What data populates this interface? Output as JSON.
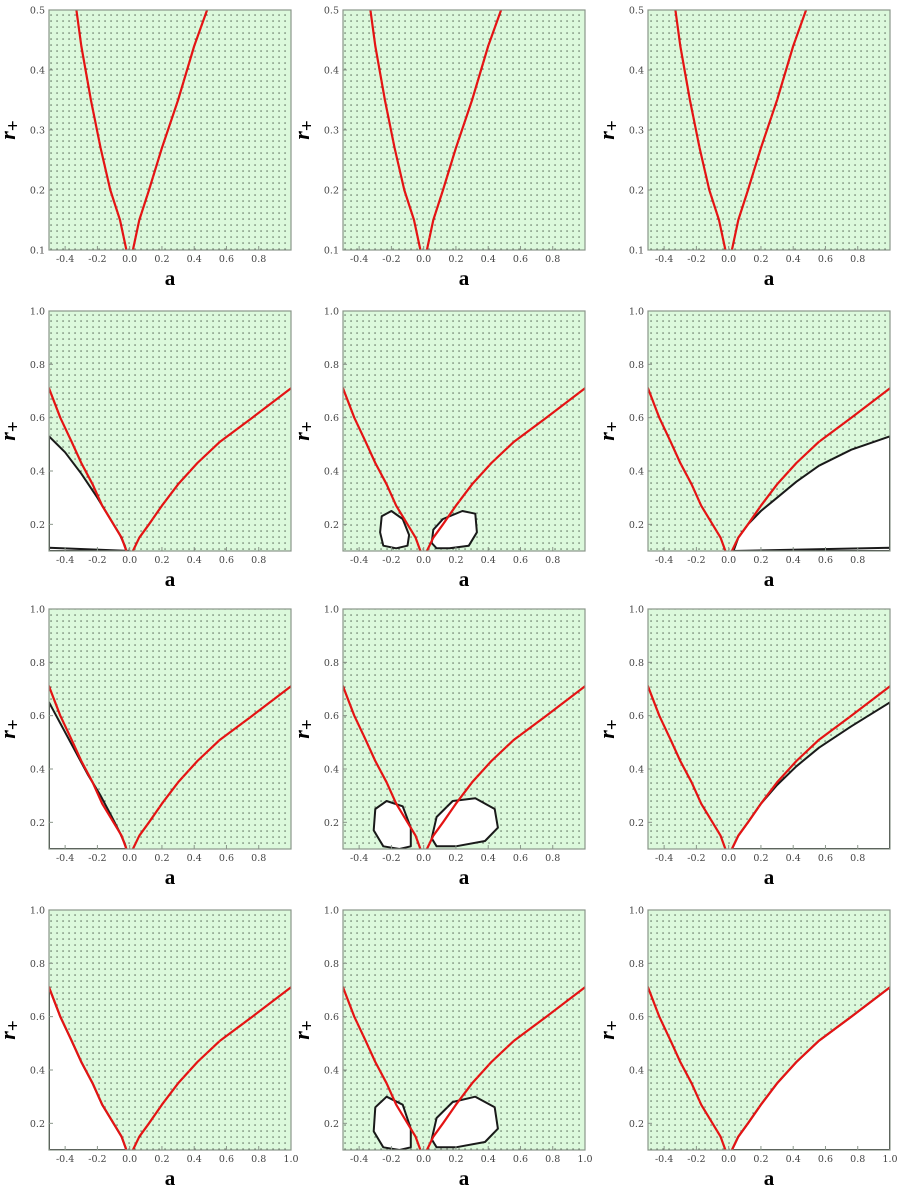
{
  "colors": {
    "region_fill": "#dcf9dc",
    "dot": "#1e281e",
    "red_curve": "#e41414",
    "black_curve": "#1a1a1a",
    "excluded": "#ffffff"
  },
  "chart_data": [
    {
      "type": "scatter",
      "id": "r1c1",
      "xlabel": "a",
      "ylabel": "r",
      "ylabel_sub": "+",
      "xlim": [
        -0.5,
        1.0
      ],
      "ylim": [
        0.1,
        0.5
      ],
      "xticks": [
        "-0.4",
        "-0.2",
        "0.0",
        "0.2",
        "0.4",
        "0.6",
        "0.8"
      ],
      "yticks": [
        "0.1",
        "0.2",
        "0.3",
        "0.4",
        "0.5"
      ],
      "red_curve": {
        "left_a": [
          -0.02,
          -0.06,
          -0.12,
          -0.18,
          -0.24,
          -0.3,
          -0.33
        ],
        "right_a": [
          0.02,
          0.06,
          0.12,
          0.2,
          0.3,
          0.4,
          0.48
        ],
        "r": [
          0.1,
          0.15,
          0.2,
          0.27,
          0.35,
          0.44,
          0.5
        ]
      },
      "excluded_regions": []
    },
    {
      "type": "scatter",
      "id": "r1c2",
      "xlabel": "a",
      "ylabel": "r",
      "ylabel_sub": "+",
      "xlim": [
        -0.5,
        1.0
      ],
      "ylim": [
        0.1,
        0.5
      ],
      "xticks": [
        "-0.4",
        "-0.2",
        "0.0",
        "0.2",
        "0.4",
        "0.6",
        "0.8"
      ],
      "yticks": [
        "0.1",
        "0.2",
        "0.3",
        "0.4",
        "0.5"
      ],
      "red_curve": {
        "left_a": [
          -0.02,
          -0.06,
          -0.12,
          -0.18,
          -0.24,
          -0.3,
          -0.33
        ],
        "right_a": [
          0.02,
          0.06,
          0.12,
          0.2,
          0.3,
          0.4,
          0.48
        ],
        "r": [
          0.1,
          0.15,
          0.2,
          0.27,
          0.35,
          0.44,
          0.5
        ]
      },
      "excluded_regions": []
    },
    {
      "type": "scatter",
      "id": "r1c3",
      "xlabel": "a",
      "ylabel": "r",
      "ylabel_sub": "+",
      "xlim": [
        -0.5,
        1.0
      ],
      "ylim": [
        0.1,
        0.5
      ],
      "xticks": [
        "-0.4",
        "-0.2",
        "0.0",
        "0.2",
        "0.4",
        "0.6",
        "0.8"
      ],
      "yticks": [
        "0.1",
        "0.2",
        "0.3",
        "0.4",
        "0.5"
      ],
      "red_curve": {
        "left_a": [
          -0.02,
          -0.06,
          -0.12,
          -0.18,
          -0.24,
          -0.3,
          -0.33
        ],
        "right_a": [
          0.02,
          0.06,
          0.12,
          0.2,
          0.3,
          0.4,
          0.48
        ],
        "r": [
          0.1,
          0.15,
          0.2,
          0.27,
          0.35,
          0.44,
          0.5
        ]
      },
      "excluded_regions": []
    },
    {
      "type": "scatter",
      "id": "r2c1",
      "xlabel": "a",
      "ylabel": "r",
      "ylabel_sub": "+",
      "xlim": [
        -0.5,
        1.0
      ],
      "ylim": [
        0.1,
        1.0
      ],
      "xticks": [
        "-0.4",
        "-0.2",
        "0.0",
        "0.2",
        "0.4",
        "0.6",
        "0.8"
      ],
      "yticks": [
        "0.2",
        "0.4",
        "0.6",
        "0.8",
        "1.0"
      ],
      "red_curve": {
        "left_a": [
          -0.02,
          -0.05,
          -0.1,
          -0.17,
          -0.23,
          -0.3,
          -0.36,
          -0.43,
          -0.5
        ],
        "right_a": [
          0.02,
          0.06,
          0.12,
          0.2,
          0.3,
          0.42,
          0.56,
          0.76,
          1.0
        ],
        "r": [
          0.1,
          0.15,
          0.2,
          0.27,
          0.35,
          0.43,
          0.51,
          0.6,
          0.71
        ]
      },
      "excluded_regions": [
        {
          "a": [
            -0.5,
            -0.4,
            -0.3,
            -0.2,
            -0.12,
            -0.06,
            -0.03,
            -0.02,
            -0.5
          ],
          "r": [
            0.53,
            0.47,
            0.39,
            0.3,
            0.22,
            0.16,
            0.12,
            0.1,
            0.1
          ]
        },
        {
          "a": [
            -0.5,
            0.0,
            -0.5
          ],
          "r": [
            0.112,
            0.1,
            0.1
          ]
        }
      ]
    },
    {
      "type": "scatter",
      "id": "r2c2",
      "xlabel": "a",
      "ylabel": "r",
      "ylabel_sub": "+",
      "xlim": [
        -0.5,
        1.0
      ],
      "ylim": [
        0.1,
        1.0
      ],
      "xticks": [
        "-0.4",
        "-0.2",
        "0.0",
        "0.2",
        "0.4",
        "0.6",
        "0.8"
      ],
      "yticks": [
        "0.2",
        "0.4",
        "0.6",
        "0.8",
        "1.0"
      ],
      "red_curve": {
        "left_a": [
          -0.02,
          -0.05,
          -0.1,
          -0.17,
          -0.23,
          -0.3,
          -0.36,
          -0.43,
          -0.5
        ],
        "right_a": [
          0.02,
          0.06,
          0.12,
          0.2,
          0.3,
          0.42,
          0.56,
          0.76,
          1.0
        ],
        "r": [
          0.1,
          0.15,
          0.2,
          0.27,
          0.35,
          0.43,
          0.51,
          0.6,
          0.71
        ]
      },
      "excluded_regions": [
        {
          "a": [
            -0.26,
            -0.2,
            -0.13,
            -0.09,
            -0.1,
            -0.17,
            -0.25,
            -0.27,
            -0.26
          ],
          "r": [
            0.23,
            0.25,
            0.22,
            0.16,
            0.12,
            0.11,
            0.12,
            0.17,
            0.23
          ]
        },
        {
          "a": [
            0.06,
            0.12,
            0.24,
            0.32,
            0.33,
            0.28,
            0.16,
            0.08,
            0.05,
            0.06
          ],
          "r": [
            0.18,
            0.22,
            0.25,
            0.24,
            0.17,
            0.12,
            0.11,
            0.11,
            0.13,
            0.18
          ]
        }
      ]
    },
    {
      "type": "scatter",
      "id": "r2c3",
      "xlabel": "a",
      "ylabel": "r",
      "ylabel_sub": "+",
      "xlim": [
        -0.5,
        1.0
      ],
      "ylim": [
        0.1,
        1.0
      ],
      "xticks": [
        "-0.4",
        "-0.2",
        "0.0",
        "0.2",
        "0.4",
        "0.6",
        "0.8"
      ],
      "yticks": [
        "0.2",
        "0.4",
        "0.6",
        "0.8",
        "1.0"
      ],
      "red_curve": {
        "left_a": [
          -0.02,
          -0.05,
          -0.1,
          -0.17,
          -0.23,
          -0.3,
          -0.36,
          -0.43,
          -0.5
        ],
        "right_a": [
          0.02,
          0.06,
          0.12,
          0.2,
          0.3,
          0.42,
          0.56,
          0.76,
          1.0
        ],
        "r": [
          0.1,
          0.15,
          0.2,
          0.27,
          0.35,
          0.43,
          0.51,
          0.6,
          0.71
        ]
      },
      "excluded_regions": [
        {
          "a": [
            0.03,
            0.06,
            0.12,
            0.2,
            0.3,
            0.42,
            0.56,
            0.76,
            1.0,
            1.0,
            0.02
          ],
          "r": [
            0.1,
            0.15,
            0.2,
            0.25,
            0.3,
            0.36,
            0.42,
            0.48,
            0.53,
            0.1,
            0.1
          ]
        },
        {
          "a": [
            0.02,
            1.0,
            1.0
          ],
          "r": [
            0.1,
            0.112,
            0.1
          ]
        }
      ]
    },
    {
      "type": "scatter",
      "id": "r3c1",
      "xlabel": "a",
      "ylabel": "r",
      "ylabel_sub": "+",
      "xlim": [
        -0.5,
        1.0
      ],
      "ylim": [
        0.1,
        1.0
      ],
      "xticks": [
        "-0.4",
        "-0.2",
        "0.0",
        "0.2",
        "0.4",
        "0.6",
        "0.8"
      ],
      "yticks": [
        "0.2",
        "0.4",
        "0.6",
        "0.8",
        "1.0"
      ],
      "red_curve": {
        "left_a": [
          -0.02,
          -0.05,
          -0.1,
          -0.17,
          -0.23,
          -0.3,
          -0.36,
          -0.43,
          -0.5
        ],
        "right_a": [
          0.02,
          0.06,
          0.12,
          0.2,
          0.3,
          0.42,
          0.56,
          0.76,
          1.0
        ],
        "r": [
          0.1,
          0.15,
          0.2,
          0.27,
          0.35,
          0.43,
          0.51,
          0.6,
          0.71
        ]
      },
      "excluded_regions": [
        {
          "a": [
            -0.5,
            -0.42,
            -0.34,
            -0.26,
            -0.18,
            -0.11,
            -0.06,
            -0.03,
            -0.02,
            -0.5
          ],
          "r": [
            0.65,
            0.56,
            0.47,
            0.38,
            0.3,
            0.22,
            0.16,
            0.12,
            0.1,
            0.1
          ]
        }
      ]
    },
    {
      "type": "scatter",
      "id": "r3c2",
      "xlabel": "a",
      "ylabel": "r",
      "ylabel_sub": "+",
      "xlim": [
        -0.5,
        1.0
      ],
      "ylim": [
        0.1,
        1.0
      ],
      "xticks": [
        "-0.4",
        "-0.2",
        "0.0",
        "0.2",
        "0.4",
        "0.6",
        "0.8"
      ],
      "yticks": [
        "0.2",
        "0.4",
        "0.6",
        "0.8",
        "1.0"
      ],
      "red_curve": {
        "left_a": [
          -0.02,
          -0.05,
          -0.1,
          -0.17,
          -0.23,
          -0.3,
          -0.36,
          -0.43,
          -0.5
        ],
        "right_a": [
          0.02,
          0.06,
          0.12,
          0.2,
          0.3,
          0.42,
          0.56,
          0.76,
          1.0
        ],
        "r": [
          0.1,
          0.15,
          0.2,
          0.27,
          0.35,
          0.43,
          0.51,
          0.6,
          0.71
        ]
      },
      "excluded_regions": [
        {
          "a": [
            -0.3,
            -0.23,
            -0.13,
            -0.08,
            -0.08,
            -0.15,
            -0.25,
            -0.31,
            -0.3
          ],
          "r": [
            0.25,
            0.28,
            0.26,
            0.18,
            0.11,
            0.1,
            0.11,
            0.17,
            0.25
          ]
        },
        {
          "a": [
            0.08,
            0.18,
            0.32,
            0.44,
            0.46,
            0.38,
            0.2,
            0.08,
            0.05,
            0.08
          ],
          "r": [
            0.22,
            0.28,
            0.29,
            0.25,
            0.18,
            0.13,
            0.11,
            0.11,
            0.14,
            0.22
          ]
        }
      ]
    },
    {
      "type": "scatter",
      "id": "r3c3",
      "xlabel": "a",
      "ylabel": "r",
      "ylabel_sub": "+",
      "xlim": [
        -0.5,
        1.0
      ],
      "ylim": [
        0.1,
        1.0
      ],
      "xticks": [
        "-0.4",
        "-0.2",
        "0.0",
        "0.2",
        "0.4",
        "0.6",
        "0.8"
      ],
      "yticks": [
        "0.2",
        "0.4",
        "0.6",
        "0.8",
        "1.0"
      ],
      "red_curve": {
        "left_a": [
          -0.02,
          -0.05,
          -0.1,
          -0.17,
          -0.23,
          -0.3,
          -0.36,
          -0.43,
          -0.5
        ],
        "right_a": [
          0.02,
          0.06,
          0.12,
          0.2,
          0.3,
          0.42,
          0.56,
          0.76,
          1.0
        ],
        "r": [
          0.1,
          0.15,
          0.2,
          0.27,
          0.35,
          0.43,
          0.51,
          0.6,
          0.71
        ]
      },
      "excluded_regions": [
        {
          "a": [
            0.02,
            0.06,
            0.12,
            0.2,
            0.3,
            0.42,
            0.56,
            0.76,
            1.0,
            1.0,
            0.02
          ],
          "r": [
            0.1,
            0.15,
            0.2,
            0.27,
            0.34,
            0.41,
            0.48,
            0.56,
            0.65,
            0.1,
            0.1
          ]
        }
      ]
    },
    {
      "type": "scatter",
      "id": "r4c1",
      "xlabel": "a",
      "ylabel": "r",
      "ylabel_sub": "+",
      "xlim": [
        -0.5,
        1.0
      ],
      "ylim": [
        0.1,
        1.0
      ],
      "xticks": [
        "-0.4",
        "-0.2",
        "0.0",
        "0.2",
        "0.4",
        "0.6",
        "0.8",
        "1.0"
      ],
      "yticks": [
        "0.2",
        "0.4",
        "0.6",
        "0.8",
        "1.0"
      ],
      "red_curve": {
        "left_a": [
          -0.02,
          -0.05,
          -0.1,
          -0.17,
          -0.23,
          -0.3,
          -0.36,
          -0.43,
          -0.5
        ],
        "right_a": [
          0.02,
          0.06,
          0.12,
          0.2,
          0.3,
          0.42,
          0.56,
          0.76,
          1.0
        ],
        "r": [
          0.1,
          0.15,
          0.2,
          0.27,
          0.35,
          0.43,
          0.51,
          0.6,
          0.71
        ]
      },
      "excluded_regions": [
        {
          "a": [
            -0.5,
            -0.43,
            -0.36,
            -0.3,
            -0.23,
            -0.17,
            -0.1,
            -0.05,
            -0.02,
            -0.5
          ],
          "r": [
            0.71,
            0.6,
            0.51,
            0.43,
            0.35,
            0.27,
            0.2,
            0.15,
            0.1,
            0.1
          ]
        }
      ]
    },
    {
      "type": "scatter",
      "id": "r4c2",
      "xlabel": "a",
      "ylabel": "r",
      "ylabel_sub": "+",
      "xlim": [
        -0.5,
        1.0
      ],
      "ylim": [
        0.1,
        1.0
      ],
      "xticks": [
        "-0.4",
        "-0.2",
        "0.0",
        "0.2",
        "0.4",
        "0.6",
        "0.8",
        "1.0"
      ],
      "yticks": [
        "0.2",
        "0.4",
        "0.6",
        "0.8",
        "1.0"
      ],
      "red_curve": {
        "left_a": [
          -0.02,
          -0.05,
          -0.1,
          -0.17,
          -0.23,
          -0.3,
          -0.36,
          -0.43,
          -0.5
        ],
        "right_a": [
          0.02,
          0.06,
          0.12,
          0.2,
          0.3,
          0.42,
          0.56,
          0.76,
          1.0
        ],
        "r": [
          0.1,
          0.15,
          0.2,
          0.27,
          0.35,
          0.43,
          0.51,
          0.6,
          0.71
        ]
      },
      "excluded_regions": [
        {
          "a": [
            -0.3,
            -0.23,
            -0.13,
            -0.08,
            -0.08,
            -0.15,
            -0.25,
            -0.31,
            -0.3
          ],
          "r": [
            0.26,
            0.3,
            0.27,
            0.18,
            0.11,
            0.1,
            0.11,
            0.17,
            0.26
          ]
        },
        {
          "a": [
            0.08,
            0.18,
            0.32,
            0.44,
            0.46,
            0.38,
            0.2,
            0.08,
            0.05,
            0.08
          ],
          "r": [
            0.22,
            0.28,
            0.3,
            0.26,
            0.18,
            0.13,
            0.11,
            0.11,
            0.14,
            0.22
          ]
        }
      ]
    },
    {
      "type": "scatter",
      "id": "r4c3",
      "xlabel": "a",
      "ylabel": "r",
      "ylabel_sub": "+",
      "xlim": [
        -0.5,
        1.0
      ],
      "ylim": [
        0.1,
        1.0
      ],
      "xticks": [
        "-0.4",
        "-0.2",
        "0.0",
        "0.2",
        "0.4",
        "0.6",
        "0.8",
        "1.0"
      ],
      "yticks": [
        "0.2",
        "0.4",
        "0.6",
        "0.8",
        "1.0"
      ],
      "red_curve": {
        "left_a": [
          -0.02,
          -0.05,
          -0.1,
          -0.17,
          -0.23,
          -0.3,
          -0.36,
          -0.43,
          -0.5
        ],
        "right_a": [
          0.02,
          0.06,
          0.12,
          0.2,
          0.3,
          0.42,
          0.56,
          0.76,
          1.0
        ],
        "r": [
          0.1,
          0.15,
          0.2,
          0.27,
          0.35,
          0.43,
          0.51,
          0.6,
          0.71
        ]
      },
      "excluded_regions": [
        {
          "a": [
            0.02,
            0.06,
            0.12,
            0.2,
            0.3,
            0.42,
            0.56,
            0.76,
            1.0,
            1.0,
            0.02
          ],
          "r": [
            0.1,
            0.15,
            0.2,
            0.27,
            0.35,
            0.43,
            0.51,
            0.6,
            0.71,
            0.1,
            0.1
          ]
        }
      ]
    }
  ]
}
